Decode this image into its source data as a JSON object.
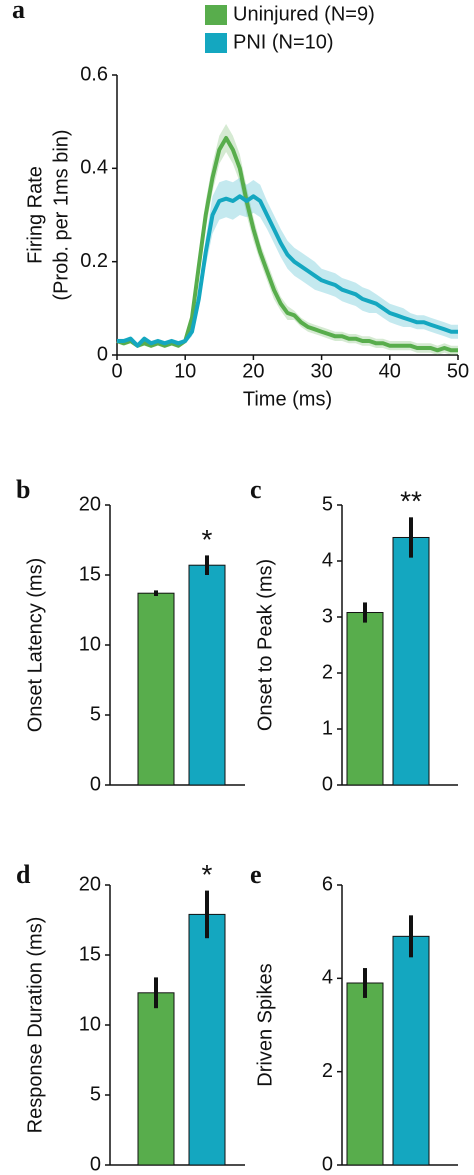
{
  "chart_data": [
    {
      "type": "line",
      "panel_label": "a",
      "ylabel": [
        "Firing Rate",
        "(Prob. per 1ms bin)"
      ],
      "xlabel": "Time (ms)",
      "x": [
        0,
        1,
        2,
        3,
        4,
        5,
        6,
        7,
        8,
        9,
        10,
        11,
        12,
        13,
        14,
        15,
        16,
        17,
        18,
        19,
        20,
        21,
        22,
        23,
        24,
        25,
        26,
        27,
        28,
        29,
        30,
        31,
        32,
        33,
        34,
        35,
        36,
        37,
        38,
        39,
        40,
        41,
        42,
        43,
        44,
        45,
        46,
        47,
        48,
        49,
        50
      ],
      "series": [
        {
          "name": "Uninjured (N=9)",
          "color": "#58ad4c",
          "values": [
            0.03,
            0.025,
            0.03,
            0.02,
            0.025,
            0.02,
            0.025,
            0.02,
            0.025,
            0.02,
            0.03,
            0.08,
            0.19,
            0.3,
            0.38,
            0.44,
            0.465,
            0.44,
            0.4,
            0.33,
            0.27,
            0.22,
            0.18,
            0.14,
            0.11,
            0.09,
            0.085,
            0.07,
            0.06,
            0.055,
            0.05,
            0.045,
            0.04,
            0.04,
            0.035,
            0.035,
            0.03,
            0.03,
            0.025,
            0.025,
            0.02,
            0.02,
            0.02,
            0.02,
            0.015,
            0.015,
            0.015,
            0.01,
            0.015,
            0.01,
            0.01
          ],
          "errors": [
            0.005,
            0.005,
            0.005,
            0.005,
            0.005,
            0.005,
            0.005,
            0.005,
            0.005,
            0.005,
            0.005,
            0.01,
            0.02,
            0.03,
            0.03,
            0.03,
            0.03,
            0.03,
            0.03,
            0.03,
            0.025,
            0.02,
            0.02,
            0.02,
            0.015,
            0.015,
            0.01,
            0.01,
            0.01,
            0.01,
            0.01,
            0.01,
            0.01,
            0.01,
            0.01,
            0.01,
            0.01,
            0.01,
            0.01,
            0.01,
            0.01,
            0.01,
            0.01,
            0.01,
            0.01,
            0.01,
            0.01,
            0.01,
            0.01,
            0.01,
            0.01
          ]
        },
        {
          "name": "PNI (N=10)",
          "color": "#14a7c0",
          "values": [
            0.03,
            0.03,
            0.035,
            0.02,
            0.035,
            0.025,
            0.03,
            0.025,
            0.03,
            0.025,
            0.03,
            0.05,
            0.12,
            0.22,
            0.3,
            0.33,
            0.335,
            0.33,
            0.34,
            0.33,
            0.34,
            0.33,
            0.3,
            0.27,
            0.24,
            0.215,
            0.2,
            0.19,
            0.18,
            0.17,
            0.16,
            0.155,
            0.15,
            0.14,
            0.135,
            0.13,
            0.12,
            0.115,
            0.11,
            0.1,
            0.09,
            0.085,
            0.08,
            0.075,
            0.07,
            0.07,
            0.065,
            0.06,
            0.055,
            0.05,
            0.05
          ],
          "errors": [
            0.005,
            0.005,
            0.005,
            0.005,
            0.005,
            0.005,
            0.005,
            0.005,
            0.005,
            0.005,
            0.005,
            0.01,
            0.02,
            0.03,
            0.04,
            0.04,
            0.04,
            0.04,
            0.04,
            0.035,
            0.035,
            0.035,
            0.03,
            0.03,
            0.03,
            0.03,
            0.03,
            0.03,
            0.03,
            0.03,
            0.025,
            0.025,
            0.025,
            0.025,
            0.025,
            0.025,
            0.025,
            0.025,
            0.02,
            0.02,
            0.02,
            0.02,
            0.02,
            0.015,
            0.015,
            0.015,
            0.015,
            0.015,
            0.015,
            0.015,
            0.015
          ]
        }
      ],
      "xlim": [
        0,
        50
      ],
      "xticks": [
        0,
        10,
        20,
        30,
        40,
        50
      ],
      "ylim": [
        0,
        0.6
      ],
      "yticks": [
        0,
        0.2,
        0.4,
        0.6
      ],
      "legend": "top",
      "grid": false
    },
    {
      "type": "bar",
      "panel_label": "b",
      "ylabel": "Onset Latency (ms)",
      "categories": [
        null,
        null
      ],
      "values": [
        13.7,
        15.7
      ],
      "errors": [
        0.2,
        0.7
      ],
      "colors": [
        "#58ad4c",
        "#14a7c0"
      ],
      "annotation": "*",
      "ylim": [
        0,
        20
      ],
      "yticks": [
        0,
        5,
        10,
        15,
        20
      ],
      "grid": false
    },
    {
      "type": "bar",
      "panel_label": "c",
      "ylabel": "Onset to Peak (ms)",
      "categories": [
        null,
        null
      ],
      "values": [
        3.08,
        4.42
      ],
      "errors": [
        0.18,
        0.36
      ],
      "colors": [
        "#58ad4c",
        "#14a7c0"
      ],
      "annotation": "**",
      "ylim": [
        0,
        5
      ],
      "yticks": [
        0,
        1,
        2,
        3,
        4,
        5
      ],
      "grid": false
    },
    {
      "type": "bar",
      "panel_label": "d",
      "ylabel": "Response Duration (ms)",
      "categories": [
        null,
        null
      ],
      "values": [
        12.3,
        17.9
      ],
      "errors": [
        1.1,
        1.7
      ],
      "colors": [
        "#58ad4c",
        "#14a7c0"
      ],
      "annotation": "*",
      "ylim": [
        0,
        20
      ],
      "yticks": [
        0,
        5,
        10,
        15,
        20
      ],
      "grid": false
    },
    {
      "type": "bar",
      "panel_label": "e",
      "ylabel": "Driven Spikes",
      "categories": [
        null,
        null
      ],
      "values": [
        3.9,
        4.9
      ],
      "errors": [
        0.32,
        0.45
      ],
      "colors": [
        "#58ad4c",
        "#14a7c0"
      ],
      "ylim": [
        0,
        6
      ],
      "yticks": [
        0,
        2,
        4,
        6
      ],
      "grid": false
    }
  ]
}
